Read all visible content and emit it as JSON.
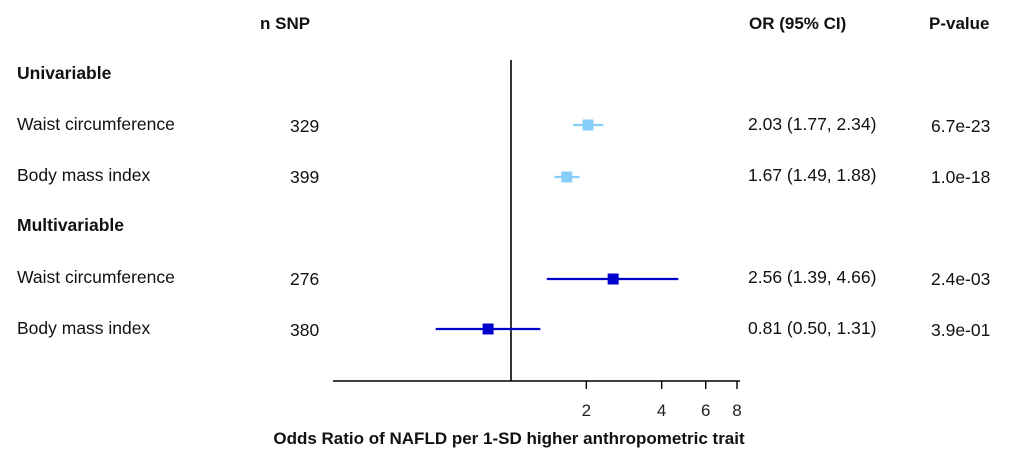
{
  "headers": {
    "nsnp": "n SNP",
    "or": "OR (95% CI)",
    "p": "P-value"
  },
  "groups": [
    "Univariable",
    "Multivariable"
  ],
  "rows": [
    {
      "label": "Waist circumference",
      "nsnp": "329",
      "or_text": "2.03 (1.77, 2.34)",
      "p": "6.7e-23"
    },
    {
      "label": "Body mass index",
      "nsnp": "399",
      "or_text": "1.67 (1.49, 1.88)",
      "p": "1.0e-18"
    },
    {
      "label": "Waist circumference",
      "nsnp": "276",
      "or_text": "2.56 (1.39, 4.66)",
      "p": "2.4e-03"
    },
    {
      "label": "Body mass index",
      "nsnp": "380",
      "or_text": "0.81 (0.50, 1.31)",
      "p": "3.9e-01"
    }
  ],
  "chart_data": {
    "type": "forest",
    "xlabel": "Odds Ratio of NAFLD per 1-SD higher anthropometric trait",
    "xscale": "log",
    "xticks": [
      2,
      4,
      6,
      8
    ],
    "reference_line": 1,
    "xlim": [
      0.35,
      8.5
    ],
    "series": [
      {
        "name": "Univariable",
        "color": "#87cefa",
        "points": [
          {
            "label": "Waist circumference",
            "or": 2.03,
            "lower": 1.77,
            "upper": 2.34
          },
          {
            "label": "Body mass index",
            "or": 1.67,
            "lower": 1.49,
            "upper": 1.88
          }
        ]
      },
      {
        "name": "Multivariable",
        "color": "#0000cd",
        "points": [
          {
            "label": "Waist circumference",
            "or": 2.56,
            "lower": 1.39,
            "upper": 4.66
          },
          {
            "label": "Body mass index",
            "or": 0.81,
            "lower": 0.5,
            "upper": 1.31
          }
        ]
      }
    ]
  }
}
